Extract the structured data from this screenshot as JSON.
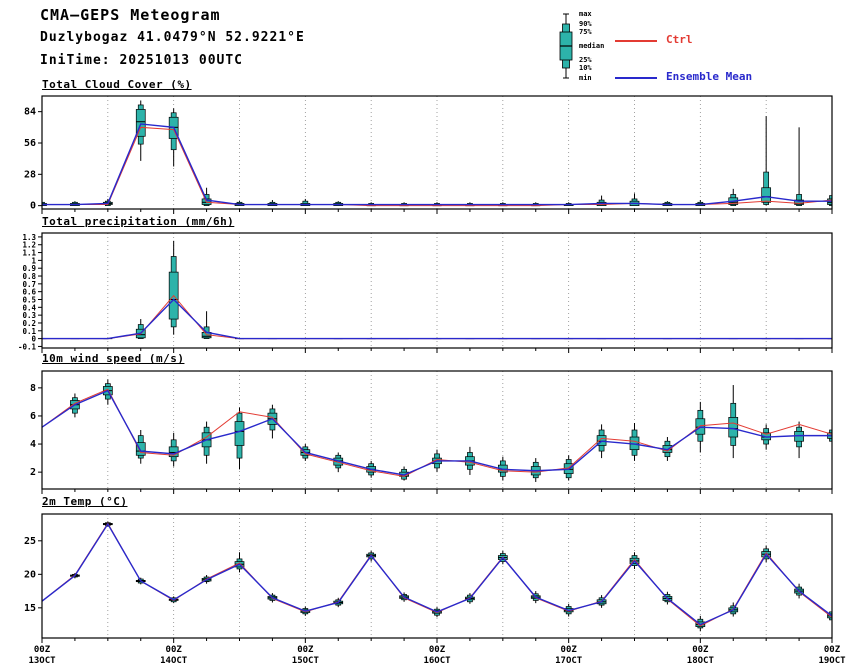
{
  "header": {
    "title": "CMA—GEPS Meteogram",
    "location": "Duzlybogaz 41.0479°N 52.9221°E",
    "initime": "IniTime: 20251013 00UTC"
  },
  "legend": {
    "box_labels": [
      "max",
      "90%",
      "75%",
      "median",
      "25%",
      "10%",
      "min"
    ],
    "ctrl_label": "Ctrl",
    "mean_label": "Ensemble Mean"
  },
  "colors": {
    "box_fill": "#2db3aa",
    "box_stroke": "#000000",
    "ctrl": "#e33b33",
    "mean": "#2929cc",
    "grid": "#8a8a8a"
  },
  "chart_data": {
    "type": "meteogram-box-line",
    "stats_order": [
      "min",
      "p10",
      "p25",
      "median",
      "p75",
      "p90",
      "max"
    ],
    "x_hours_step": 6,
    "x_total_hours": 144,
    "xticks": [
      {
        "h": 0,
        "z": "00Z",
        "date": "13OCT"
      },
      {
        "h": 24,
        "z": "00Z",
        "date": "14OCT"
      },
      {
        "h": 48,
        "z": "00Z",
        "date": "15OCT"
      },
      {
        "h": 72,
        "z": "00Z",
        "date": "16OCT"
      },
      {
        "h": 96,
        "z": "00Z",
        "date": "17OCT"
      },
      {
        "h": 120,
        "z": "00Z",
        "date": "18OCT"
      },
      {
        "h": 144,
        "z": "00Z",
        "date": "19OCT"
      }
    ],
    "panels": [
      {
        "title": "Total Cloud Cover (%)",
        "type": "box-line",
        "ylim": [
          -3,
          98
        ],
        "yticks": [
          0,
          28,
          56,
          84
        ],
        "ytick_labels": [
          "0",
          "28",
          "56",
          "84"
        ],
        "boxes": [
          [
            0,
            0,
            0,
            1,
            2,
            3,
            4
          ],
          [
            0,
            0,
            0,
            1,
            2,
            3,
            4
          ],
          [
            0,
            0,
            1,
            2,
            3,
            4,
            6
          ],
          [
            40,
            55,
            62,
            75,
            86,
            90,
            94
          ],
          [
            35,
            50,
            60,
            70,
            79,
            83,
            87
          ],
          [
            0,
            0,
            1,
            3,
            6,
            10,
            16
          ],
          [
            0,
            0,
            0,
            1,
            2,
            3,
            4
          ],
          [
            0,
            0,
            0,
            1,
            2,
            3,
            5
          ],
          [
            0,
            0,
            0,
            1,
            2,
            4,
            6
          ],
          [
            0,
            0,
            0,
            1,
            2,
            3,
            4
          ],
          [
            0,
            0,
            0,
            0,
            1,
            2,
            3
          ],
          [
            0,
            0,
            0,
            0,
            1,
            2,
            3
          ],
          [
            0,
            0,
            0,
            0,
            1,
            2,
            3
          ],
          [
            0,
            0,
            0,
            0,
            1,
            2,
            3
          ],
          [
            0,
            0,
            0,
            0,
            1,
            2,
            3
          ],
          [
            0,
            0,
            0,
            0,
            1,
            2,
            3
          ],
          [
            0,
            0,
            0,
            1,
            1,
            2,
            3
          ],
          [
            0,
            0,
            0,
            1,
            3,
            5,
            9
          ],
          [
            0,
            0,
            0,
            2,
            4,
            6,
            11
          ],
          [
            0,
            0,
            0,
            1,
            2,
            3,
            4
          ],
          [
            0,
            0,
            0,
            1,
            2,
            3,
            5
          ],
          [
            0,
            0,
            1,
            3,
            7,
            10,
            15
          ],
          [
            0,
            1,
            3,
            8,
            16,
            30,
            80
          ],
          [
            0,
            0,
            1,
            2,
            5,
            10,
            70
          ],
          [
            0,
            0,
            1,
            3,
            6,
            9,
            12
          ]
        ],
        "ctrl": [
          1,
          1,
          1,
          70,
          68,
          3,
          1,
          1,
          1,
          1,
          0,
          0,
          0,
          0,
          0,
          0,
          1,
          1,
          2,
          1,
          1,
          2,
          4,
          2,
          5
        ],
        "mean": [
          1,
          1,
          2,
          73,
          70,
          5,
          1,
          1,
          1,
          1,
          1,
          1,
          1,
          1,
          1,
          1,
          1,
          2,
          2,
          1,
          1,
          4,
          8,
          4,
          4
        ]
      },
      {
        "title": "Total precipitation (mm/6h)",
        "type": "box-line",
        "ylim": [
          -0.12,
          1.35
        ],
        "yticks": [
          -0.1,
          0,
          0.1,
          0.2,
          0.3,
          0.4,
          0.5,
          0.6,
          0.7,
          0.8,
          0.9,
          1,
          1.1,
          1.2,
          1.3
        ],
        "ytick_labels": [
          "-0.1",
          "0",
          "0.1",
          "0.2",
          "0.3",
          "0.4",
          "0.5",
          "0.6",
          "0.7",
          "0.8",
          "0.9",
          "1",
          "1.1",
          "1.2",
          "1.3"
        ],
        "small_yticks": true,
        "boxes": [
          [
            0,
            0,
            0,
            0,
            0,
            0,
            0
          ],
          [
            0,
            0,
            0,
            0,
            0,
            0,
            0
          ],
          [
            0,
            0,
            0,
            0,
            0,
            0,
            0
          ],
          [
            0,
            0,
            0.01,
            0.05,
            0.12,
            0.18,
            0.25
          ],
          [
            0.05,
            0.15,
            0.25,
            0.5,
            0.85,
            1.05,
            1.25
          ],
          [
            0,
            0,
            0.01,
            0.03,
            0.08,
            0.15,
            0.35
          ],
          [
            0,
            0,
            0,
            0,
            0,
            0,
            0
          ],
          [
            0,
            0,
            0,
            0,
            0,
            0,
            0
          ],
          [
            0,
            0,
            0,
            0,
            0,
            0,
            0
          ],
          [
            0,
            0,
            0,
            0,
            0,
            0,
            0
          ],
          [
            0,
            0,
            0,
            0,
            0,
            0,
            0
          ],
          [
            0,
            0,
            0,
            0,
            0,
            0,
            0
          ],
          [
            0,
            0,
            0,
            0,
            0,
            0,
            0
          ],
          [
            0,
            0,
            0,
            0,
            0,
            0,
            0
          ],
          [
            0,
            0,
            0,
            0,
            0,
            0,
            0
          ],
          [
            0,
            0,
            0,
            0,
            0,
            0,
            0
          ],
          [
            0,
            0,
            0,
            0,
            0,
            0,
            0
          ],
          [
            0,
            0,
            0,
            0,
            0,
            0,
            0
          ],
          [
            0,
            0,
            0,
            0,
            0,
            0,
            0
          ],
          [
            0,
            0,
            0,
            0,
            0,
            0,
            0
          ],
          [
            0,
            0,
            0,
            0,
            0,
            0,
            0
          ],
          [
            0,
            0,
            0,
            0,
            0,
            0,
            0
          ],
          [
            0,
            0,
            0,
            0,
            0,
            0,
            0
          ],
          [
            0,
            0,
            0,
            0,
            0,
            0,
            0
          ],
          [
            0,
            0,
            0,
            0,
            0,
            0,
            0
          ]
        ],
        "ctrl": [
          0,
          0,
          0,
          0.06,
          0.55,
          0.05,
          0,
          0,
          0,
          0,
          0,
          0,
          0,
          0,
          0,
          0,
          0,
          0,
          0,
          0,
          0,
          0,
          0,
          0,
          0
        ],
        "mean": [
          0,
          0,
          0,
          0.07,
          0.5,
          0.08,
          0,
          0,
          0,
          0,
          0,
          0,
          0,
          0,
          0,
          0,
          0,
          0,
          0,
          0,
          0,
          0,
          0,
          0,
          0
        ]
      },
      {
        "title": "10m wind speed (m/s)",
        "type": "box-line",
        "ylim": [
          0.8,
          9.2
        ],
        "yticks": [
          2,
          4,
          6,
          8
        ],
        "ytick_labels": [
          "2",
          "4",
          "6",
          "8"
        ],
        "boxes": [
          null,
          [
            5.9,
            6.2,
            6.5,
            6.8,
            7.1,
            7.3,
            7.6
          ],
          [
            6.8,
            7.2,
            7.5,
            7.8,
            8.1,
            8.3,
            8.6
          ],
          [
            2.6,
            3.0,
            3.2,
            3.5,
            4.1,
            4.6,
            5.0
          ],
          [
            2.4,
            2.8,
            3.1,
            3.4,
            3.8,
            4.3,
            4.8
          ],
          [
            2.6,
            3.2,
            3.8,
            4.3,
            4.8,
            5.2,
            5.6
          ],
          [
            2.2,
            3.0,
            3.9,
            4.9,
            5.6,
            6.2,
            6.6
          ],
          [
            4.4,
            5.0,
            5.4,
            5.8,
            6.2,
            6.5,
            6.8
          ],
          [
            2.8,
            3.0,
            3.2,
            3.4,
            3.6,
            3.8,
            4.0
          ],
          [
            2.0,
            2.3,
            2.5,
            2.8,
            3.0,
            3.2,
            3.4
          ],
          [
            1.6,
            1.8,
            2.0,
            2.2,
            2.4,
            2.6,
            2.8
          ],
          [
            1.4,
            1.5,
            1.7,
            1.8,
            2.0,
            2.2,
            2.4
          ],
          [
            2.0,
            2.3,
            2.6,
            2.8,
            3.0,
            3.3,
            3.6
          ],
          [
            1.8,
            2.2,
            2.5,
            2.8,
            3.1,
            3.4,
            3.8
          ],
          [
            1.4,
            1.7,
            2.0,
            2.2,
            2.5,
            2.8,
            3.1
          ],
          [
            1.3,
            1.6,
            1.8,
            2.1,
            2.4,
            2.7,
            3.0
          ],
          [
            1.4,
            1.6,
            1.9,
            2.2,
            2.6,
            2.9,
            3.2
          ],
          [
            3.0,
            3.5,
            3.9,
            4.2,
            4.6,
            5.0,
            5.4
          ],
          [
            2.8,
            3.2,
            3.6,
            4.0,
            4.5,
            5.0,
            5.5
          ],
          [
            2.8,
            3.1,
            3.4,
            3.6,
            3.9,
            4.2,
            4.5
          ],
          [
            3.4,
            4.2,
            4.7,
            5.2,
            5.8,
            6.4,
            7.0
          ],
          [
            3.0,
            3.9,
            4.5,
            5.1,
            5.9,
            6.9,
            8.2
          ],
          [
            3.6,
            4.0,
            4.3,
            4.5,
            4.8,
            5.1,
            5.4
          ],
          [
            3.0,
            3.8,
            4.2,
            4.6,
            4.9,
            5.2,
            5.6
          ],
          [
            3.9,
            4.2,
            4.4,
            4.6,
            4.8,
            5.0,
            5.2
          ]
        ],
        "ctrl": [
          5.2,
          6.9,
          7.9,
          3.4,
          3.2,
          4.5,
          6.3,
          5.9,
          3.3,
          2.7,
          2.1,
          1.7,
          2.9,
          2.7,
          2.1,
          2.0,
          2.3,
          4.4,
          4.2,
          3.5,
          5.3,
          5.5,
          4.7,
          5.4,
          4.7
        ],
        "mean": [
          5.2,
          6.8,
          7.8,
          3.5,
          3.3,
          4.3,
          4.9,
          5.8,
          3.4,
          2.8,
          2.2,
          1.8,
          2.8,
          2.8,
          2.2,
          2.1,
          2.2,
          4.2,
          4.0,
          3.6,
          5.2,
          5.1,
          4.5,
          4.6,
          4.6
        ]
      },
      {
        "title": "2m Temp (°C)",
        "type": "box-line",
        "ylim": [
          10.5,
          29
        ],
        "yticks": [
          15,
          20,
          25
        ],
        "ytick_labels": [
          "15",
          "20",
          "25"
        ],
        "show_xlabels": true,
        "boxes": [
          null,
          [
            19.4,
            19.6,
            19.7,
            19.8,
            19.9,
            20.0,
            20.2
          ],
          [
            27.1,
            27.3,
            27.4,
            27.5,
            27.6,
            27.7,
            27.9
          ],
          [
            18.5,
            18.7,
            18.9,
            19.0,
            19.1,
            19.3,
            19.5
          ],
          [
            15.7,
            15.9,
            16.1,
            16.2,
            16.3,
            16.5,
            16.7
          ],
          [
            18.6,
            18.9,
            19.0,
            19.2,
            19.4,
            19.6,
            19.9
          ],
          [
            20.3,
            20.8,
            21.1,
            21.5,
            21.9,
            22.3,
            23.3
          ],
          [
            15.8,
            16.1,
            16.3,
            16.5,
            16.7,
            16.9,
            17.2
          ],
          [
            13.8,
            14.1,
            14.3,
            14.5,
            14.7,
            14.9,
            15.2
          ],
          [
            15.1,
            15.4,
            15.6,
            15.8,
            16.0,
            16.2,
            16.5
          ],
          [
            21.9,
            22.3,
            22.6,
            22.8,
            23.0,
            23.2,
            23.5
          ],
          [
            15.9,
            16.2,
            16.4,
            16.6,
            16.8,
            17.0,
            17.3
          ],
          [
            13.6,
            13.9,
            14.2,
            14.4,
            14.6,
            14.8,
            15.1
          ],
          [
            15.6,
            15.9,
            16.2,
            16.4,
            16.6,
            16.9,
            17.2
          ],
          [
            21.5,
            21.9,
            22.2,
            22.5,
            22.8,
            23.1,
            23.5
          ],
          [
            15.7,
            16.1,
            16.4,
            16.6,
            16.8,
            17.1,
            17.5
          ],
          [
            13.7,
            14.1,
            14.4,
            14.6,
            14.9,
            15.2,
            15.6
          ],
          [
            15.0,
            15.4,
            15.6,
            15.9,
            16.2,
            16.5,
            16.9
          ],
          [
            20.8,
            21.3,
            21.6,
            22.0,
            22.4,
            22.8,
            23.3
          ],
          [
            15.5,
            15.9,
            16.1,
            16.4,
            16.7,
            17.0,
            17.4
          ],
          [
            11.5,
            12.0,
            12.2,
            12.5,
            12.9,
            13.3,
            13.8
          ],
          [
            13.7,
            14.1,
            14.4,
            14.7,
            15.0,
            15.3,
            15.8
          ],
          [
            21.8,
            22.3,
            22.6,
            23.0,
            23.4,
            23.8,
            24.3
          ],
          [
            16.4,
            16.9,
            17.2,
            17.5,
            17.8,
            18.1,
            18.6
          ],
          [
            12.8,
            13.2,
            13.5,
            13.8,
            14.1,
            14.4,
            14.9
          ]
        ],
        "ctrl": [
          16.0,
          19.9,
          27.6,
          19.0,
          16.1,
          19.3,
          21.7,
          16.4,
          14.4,
          15.9,
          22.9,
          16.5,
          14.3,
          16.5,
          22.6,
          16.5,
          14.5,
          16.0,
          22.2,
          16.3,
          12.3,
          14.8,
          23.2,
          17.4,
          13.6
        ],
        "mean": [
          16.0,
          19.8,
          27.5,
          19.0,
          16.2,
          19.2,
          21.5,
          16.5,
          14.5,
          15.8,
          22.8,
          16.6,
          14.4,
          16.4,
          22.5,
          16.6,
          14.6,
          15.9,
          22.0,
          16.4,
          12.5,
          14.7,
          23.0,
          17.5,
          13.8
        ]
      }
    ]
  }
}
